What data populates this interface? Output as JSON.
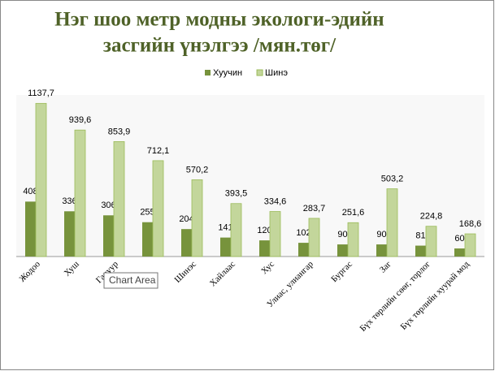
{
  "chart_data": {
    "type": "bar",
    "title_lines": [
      "Нэг шоо метр модны экологи-эдийн",
      "засгийн үнэлгээ /мян.төг/"
    ],
    "categories": [
      "Жодоо",
      "Хуш",
      "Гацуур",
      null,
      "Шинэс",
      "Хайлаас",
      "Хус",
      "Улиас, улиангар",
      "Бургас",
      "Заг",
      "Бүх төрлийн сөөг, торлог",
      "Бүх төрлийн хуурай мод"
    ],
    "series": [
      {
        "name": "Хуучин",
        "color": "#77933c",
        "values": [
          408,
          336,
          306,
          255,
          204,
          141,
          120,
          102,
          90,
          90,
          81,
          60
        ]
      },
      {
        "name": "Шинэ",
        "color": "#c3d69b",
        "values": [
          1137.7,
          939.6,
          853.9,
          712.1,
          570.2,
          393.5,
          334.6,
          283.7,
          251.6,
          503.2,
          224.8,
          168.6
        ],
        "value_labels": [
          "1137,7",
          "939,6",
          "853,9",
          "712,1",
          "570,2",
          "393,5",
          "334,6",
          "283,7",
          "251,6",
          "503,2",
          "224,8",
          "168,6"
        ]
      }
    ],
    "ylim": [
      0,
      1200
    ],
    "legend": "top",
    "tooltip": "Chart Area"
  }
}
